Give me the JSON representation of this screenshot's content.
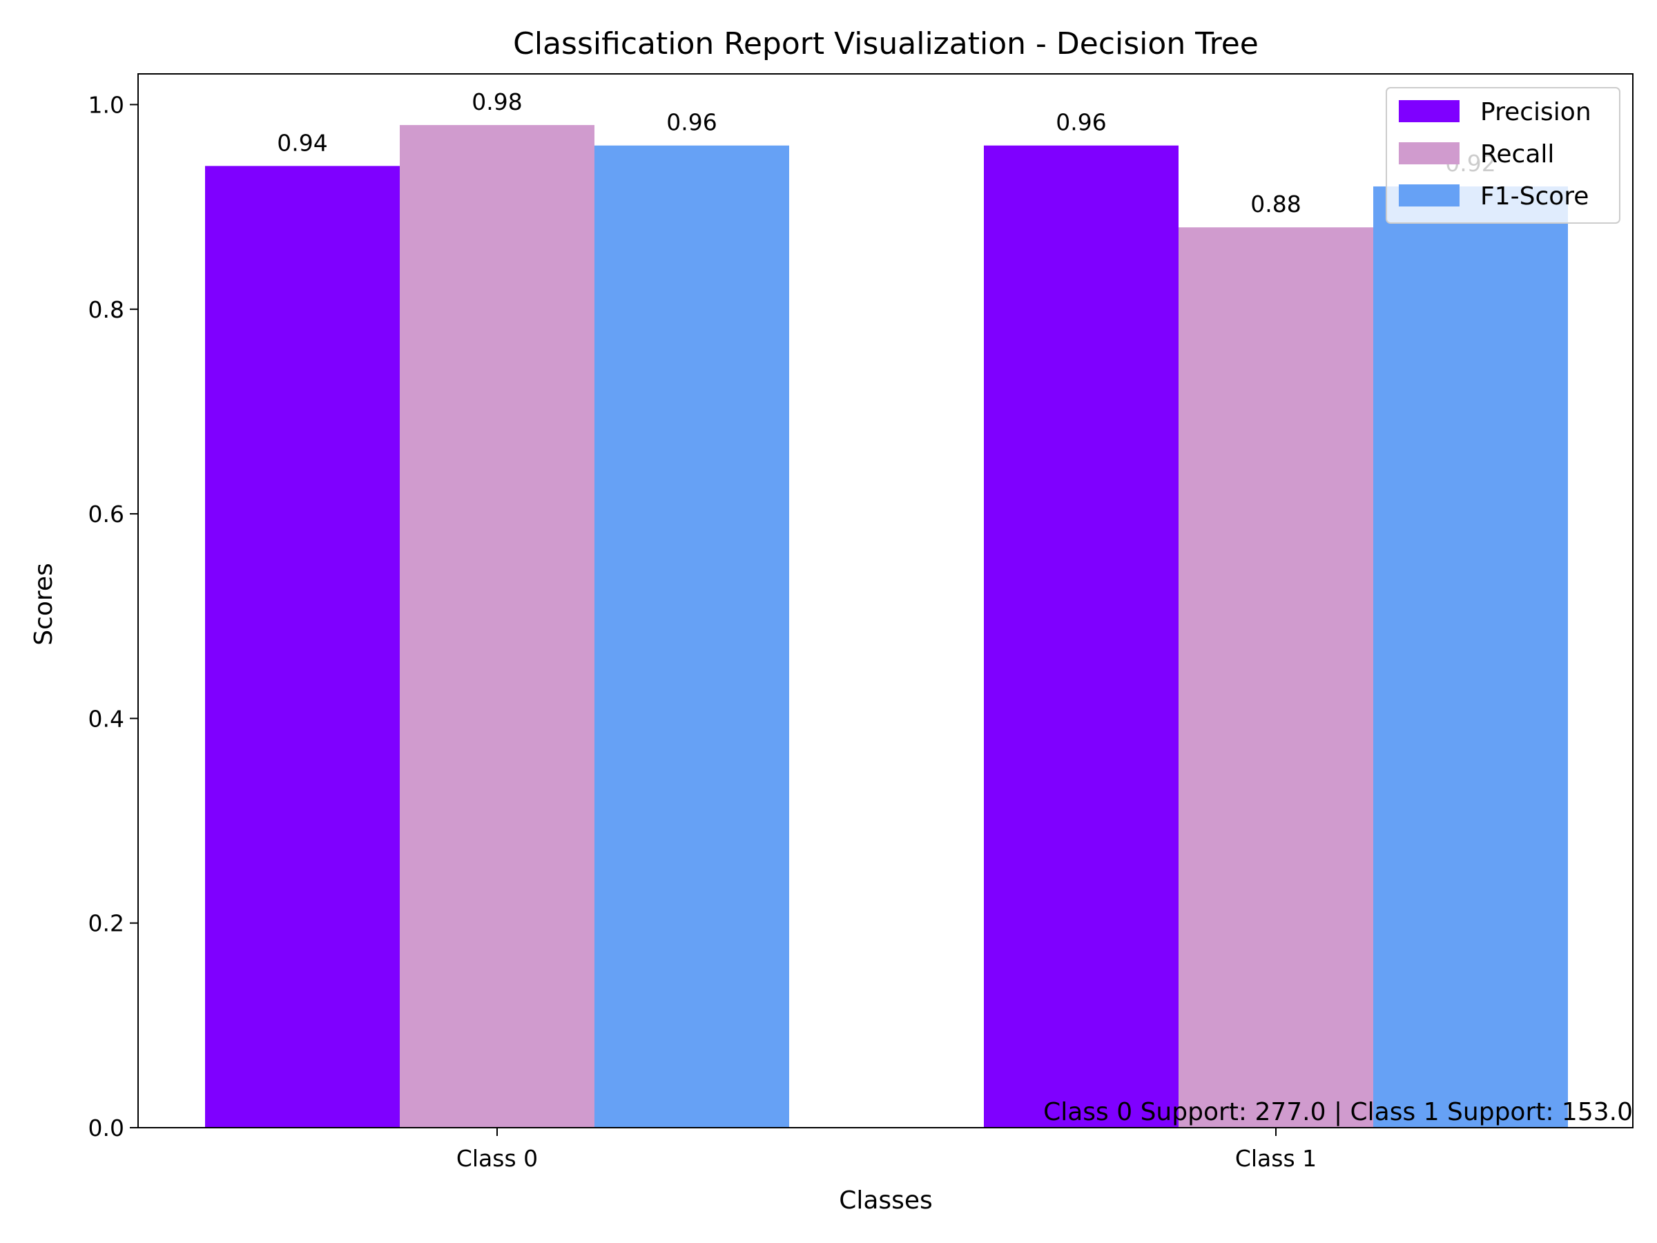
{
  "chart_data": {
    "type": "bar",
    "title": "Classification Report Visualization - Decision Tree",
    "xlabel": "Classes",
    "ylabel": "Scores",
    "categories": [
      "Class 0",
      "Class 1"
    ],
    "series": [
      {
        "name": "Precision",
        "color": "#7f00ff",
        "values": [
          0.94,
          0.96
        ],
        "labels": [
          "0.94",
          "0.96"
        ]
      },
      {
        "name": "Recall",
        "color": "#d09bce",
        "values": [
          0.98,
          0.88
        ],
        "labels": [
          "0.98",
          "0.88"
        ]
      },
      {
        "name": "F1-Score",
        "color": "#66a1f5",
        "values": [
          0.96,
          0.92
        ],
        "labels": [
          "0.96",
          "0.92"
        ]
      }
    ],
    "ylim": [
      0,
      1.03
    ],
    "yticks": [
      0.0,
      0.2,
      0.4,
      0.6,
      0.8,
      1.0
    ],
    "ytick_labels": [
      "0.0",
      "0.2",
      "0.4",
      "0.6",
      "0.8",
      "1.0"
    ],
    "grid": false,
    "legend_position": "top-right",
    "annotation": "Class 0 Support: 277.0 | Class 1 Support: 153.0"
  }
}
